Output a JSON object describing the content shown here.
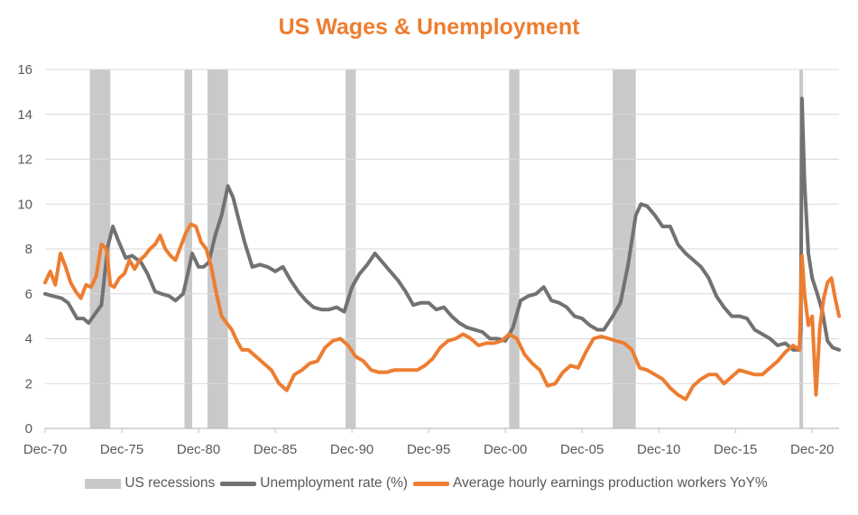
{
  "chart_data": {
    "type": "line",
    "title": "US Wages & Unemployment",
    "title_color": "#ED7D31",
    "xlabel": "",
    "ylabel": "",
    "ylim": [
      0,
      16
    ],
    "y_ticks": [
      0,
      2,
      4,
      6,
      8,
      10,
      12,
      14,
      16
    ],
    "xlim": [
      "1970-12",
      "2022-09"
    ],
    "x_ticks": [
      "Dec-70",
      "Dec-75",
      "Dec-80",
      "Dec-85",
      "Dec-90",
      "Dec-95",
      "Dec-00",
      "Dec-05",
      "Dec-10",
      "Dec-15",
      "Dec-20"
    ],
    "grid": "horizontal",
    "legend_position": "bottom",
    "recessions": {
      "name": "US recessions",
      "color": "#C9C9C9",
      "periods": [
        [
          "1973-11",
          "1975-03"
        ],
        [
          "1980-01",
          "1980-07"
        ],
        [
          "1981-07",
          "1982-11"
        ],
        [
          "1990-07",
          "1991-03"
        ],
        [
          "2001-03",
          "2001-11"
        ],
        [
          "2007-12",
          "2009-06"
        ],
        [
          "2020-02",
          "2020-04"
        ]
      ]
    },
    "series": [
      {
        "name": "Unemployment rate (%)",
        "color": "#727272",
        "x": [
          "1970-12",
          "1971-06",
          "1972-01",
          "1972-06",
          "1973-01",
          "1973-06",
          "1973-10",
          "1974-03",
          "1974-08",
          "1975-01",
          "1975-05",
          "1975-09",
          "1976-03",
          "1976-08",
          "1977-03",
          "1977-08",
          "1978-02",
          "1978-07",
          "1979-01",
          "1979-06",
          "1979-12",
          "1980-04",
          "1980-07",
          "1980-12",
          "1981-04",
          "1981-08",
          "1982-01",
          "1982-06",
          "1982-11",
          "1983-03",
          "1983-07",
          "1983-12",
          "1984-06",
          "1984-12",
          "1985-06",
          "1985-12",
          "1986-06",
          "1986-12",
          "1987-06",
          "1987-12",
          "1988-06",
          "1988-12",
          "1989-06",
          "1989-12",
          "1990-06",
          "1990-12",
          "1991-06",
          "1991-12",
          "1992-06",
          "1992-12",
          "1993-06",
          "1993-12",
          "1994-06",
          "1994-12",
          "1995-06",
          "1995-12",
          "1996-06",
          "1996-12",
          "1997-06",
          "1997-12",
          "1998-06",
          "1998-12",
          "1999-06",
          "1999-12",
          "2000-06",
          "2000-12",
          "2001-06",
          "2001-12",
          "2002-06",
          "2002-12",
          "2003-06",
          "2003-12",
          "2004-06",
          "2004-12",
          "2005-06",
          "2005-12",
          "2006-06",
          "2006-12",
          "2007-05",
          "2007-12",
          "2008-06",
          "2008-12",
          "2009-06",
          "2009-10",
          "2010-03",
          "2010-09",
          "2011-03",
          "2011-09",
          "2012-03",
          "2012-09",
          "2013-03",
          "2013-09",
          "2014-03",
          "2014-09",
          "2015-03",
          "2015-09",
          "2016-03",
          "2016-09",
          "2017-03",
          "2017-09",
          "2018-03",
          "2018-09",
          "2019-03",
          "2019-09",
          "2020-02",
          "2020-03",
          "2020-04",
          "2020-06",
          "2020-09",
          "2020-12",
          "2021-04",
          "2021-08",
          "2021-12",
          "2022-04",
          "2022-09"
        ],
        "values": [
          6.0,
          5.9,
          5.8,
          5.6,
          4.9,
          4.9,
          4.7,
          5.1,
          5.5,
          8.1,
          9.0,
          8.4,
          7.6,
          7.7,
          7.4,
          6.9,
          6.1,
          6.0,
          5.9,
          5.7,
          6.0,
          7.0,
          7.8,
          7.2,
          7.2,
          7.4,
          8.6,
          9.5,
          10.8,
          10.3,
          9.4,
          8.3,
          7.2,
          7.3,
          7.2,
          7.0,
          7.2,
          6.6,
          6.1,
          5.7,
          5.4,
          5.3,
          5.3,
          5.4,
          5.2,
          6.3,
          6.9,
          7.3,
          7.8,
          7.4,
          7.0,
          6.6,
          6.1,
          5.5,
          5.6,
          5.6,
          5.3,
          5.4,
          5.0,
          4.7,
          4.5,
          4.4,
          4.3,
          4.0,
          4.0,
          3.9,
          4.5,
          5.7,
          5.9,
          6.0,
          6.3,
          5.7,
          5.6,
          5.4,
          5.0,
          4.9,
          4.6,
          4.4,
          4.4,
          5.0,
          5.6,
          7.3,
          9.5,
          10.0,
          9.9,
          9.5,
          9.0,
          9.0,
          8.2,
          7.8,
          7.5,
          7.2,
          6.7,
          5.9,
          5.4,
          5.0,
          5.0,
          4.9,
          4.4,
          4.2,
          4.0,
          3.7,
          3.8,
          3.5,
          3.5,
          4.4,
          14.7,
          11.0,
          7.8,
          6.7,
          6.0,
          5.2,
          3.9,
          3.6,
          3.5
        ]
      },
      {
        "name": "Average hourly earnings production workers YoY%",
        "color": "#ED7D31",
        "x": [
          "1970-12",
          "1971-04",
          "1971-08",
          "1971-12",
          "1972-04",
          "1972-08",
          "1972-12",
          "1973-04",
          "1973-08",
          "1973-12",
          "1974-04",
          "1974-08",
          "1974-12",
          "1975-03",
          "1975-06",
          "1975-10",
          "1976-02",
          "1976-06",
          "1976-10",
          "1977-02",
          "1977-06",
          "1977-10",
          "1978-02",
          "1978-06",
          "1978-10",
          "1979-02",
          "1979-06",
          "1979-10",
          "1980-02",
          "1980-06",
          "1980-10",
          "1981-02",
          "1981-06",
          "1981-10",
          "1982-02",
          "1982-06",
          "1982-10",
          "1983-02",
          "1983-06",
          "1983-10",
          "1984-03",
          "1984-09",
          "1985-03",
          "1985-09",
          "1986-03",
          "1986-09",
          "1987-03",
          "1987-09",
          "1988-03",
          "1988-09",
          "1989-03",
          "1989-09",
          "1990-03",
          "1990-09",
          "1991-03",
          "1991-09",
          "1992-03",
          "1992-09",
          "1993-03",
          "1993-09",
          "1994-03",
          "1994-09",
          "1995-03",
          "1995-09",
          "1996-03",
          "1996-09",
          "1997-03",
          "1997-09",
          "1998-03",
          "1998-09",
          "1999-03",
          "1999-09",
          "2000-03",
          "2000-09",
          "2001-03",
          "2001-09",
          "2002-03",
          "2002-09",
          "2003-03",
          "2003-09",
          "2004-03",
          "2004-09",
          "2005-03",
          "2005-09",
          "2006-03",
          "2006-09",
          "2007-03",
          "2007-09",
          "2008-03",
          "2008-09",
          "2009-03",
          "2009-09",
          "2010-03",
          "2010-09",
          "2011-03",
          "2011-09",
          "2012-03",
          "2012-09",
          "2013-03",
          "2013-09",
          "2014-03",
          "2014-09",
          "2015-03",
          "2015-09",
          "2016-03",
          "2016-09",
          "2017-03",
          "2017-09",
          "2018-03",
          "2018-09",
          "2019-03",
          "2019-09",
          "2020-02",
          "2020-04",
          "2020-06",
          "2020-09",
          "2020-12",
          "2021-03",
          "2021-06",
          "2021-09",
          "2021-12",
          "2022-03",
          "2022-06",
          "2022-09"
        ],
        "values": [
          6.5,
          7.0,
          6.4,
          7.8,
          7.2,
          6.5,
          6.1,
          5.8,
          6.4,
          6.3,
          6.8,
          8.2,
          8.0,
          6.4,
          6.3,
          6.7,
          6.9,
          7.5,
          7.1,
          7.5,
          7.7,
          8.0,
          8.2,
          8.6,
          8.0,
          7.7,
          7.5,
          8.1,
          8.7,
          9.1,
          9.0,
          8.3,
          8.0,
          7.2,
          6.0,
          5.0,
          4.7,
          4.4,
          3.9,
          3.5,
          3.5,
          3.2,
          2.9,
          2.6,
          2.0,
          1.7,
          2.4,
          2.6,
          2.9,
          3.0,
          3.6,
          3.9,
          4.0,
          3.7,
          3.2,
          3.0,
          2.6,
          2.5,
          2.5,
          2.6,
          2.6,
          2.6,
          2.6,
          2.8,
          3.1,
          3.6,
          3.9,
          4.0,
          4.2,
          4.0,
          3.7,
          3.8,
          3.8,
          3.9,
          4.2,
          4.0,
          3.3,
          2.9,
          2.6,
          1.9,
          2.0,
          2.5,
          2.8,
          2.7,
          3.4,
          4.0,
          4.1,
          4.0,
          3.9,
          3.8,
          3.5,
          2.7,
          2.6,
          2.4,
          2.2,
          1.8,
          1.5,
          1.3,
          1.9,
          2.2,
          2.4,
          2.4,
          2.0,
          2.3,
          2.6,
          2.5,
          2.4,
          2.4,
          2.7,
          3.0,
          3.4,
          3.7,
          3.5,
          7.7,
          6.0,
          4.6,
          5.0,
          1.5,
          4.5,
          5.8,
          6.5,
          6.7,
          5.8,
          5.0
        ]
      }
    ]
  },
  "legend": {
    "recessions": "US recessions",
    "unemployment": "Unemployment rate (%)",
    "earnings": "Average hourly earnings production workers YoY%"
  },
  "colors": {
    "recession": "#C9C9C9",
    "unemployment": "#727272",
    "earnings": "#ED7D31",
    "grid": "#D9D9D9",
    "axis": "#BFBFBF",
    "tick_text": "#595959"
  }
}
